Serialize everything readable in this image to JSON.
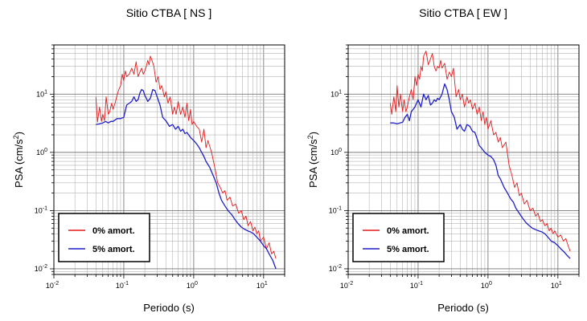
{
  "chart_data": [
    {
      "type": "line",
      "title": "Sitio CTBA [ NS ]",
      "xlabel": "Periodo (s)",
      "ylabel": "PSA (cm/s²)",
      "ylabel_base": "PSA (cm/s",
      "ylabel_sup": "2",
      "ylabel_close": ")",
      "xscale": "log",
      "yscale": "log",
      "xlim": [
        0.01,
        20
      ],
      "ylim": [
        0.008,
        70
      ],
      "grid": true,
      "legend_position": "bottom-left",
      "x_ticks": [
        {
          "base": "10",
          "exp": "-2"
        },
        {
          "base": "10",
          "exp": "-1"
        },
        {
          "base": "10",
          "exp": "0"
        },
        {
          "base": "10",
          "exp": "1"
        }
      ],
      "y_ticks": [
        {
          "base": "10",
          "exp": "-2"
        },
        {
          "base": "10",
          "exp": "-1"
        },
        {
          "base": "10",
          "exp": "0"
        },
        {
          "base": "10",
          "exp": "1"
        }
      ],
      "series": [
        {
          "name": "0% amort.",
          "color": "#e41a1c",
          "x": [
            0.04,
            0.042,
            0.045,
            0.048,
            0.05,
            0.053,
            0.056,
            0.06,
            0.063,
            0.067,
            0.07,
            0.075,
            0.08,
            0.085,
            0.09,
            0.095,
            0.1,
            0.105,
            0.11,
            0.12,
            0.13,
            0.14,
            0.15,
            0.16,
            0.17,
            0.18,
            0.19,
            0.2,
            0.21,
            0.22,
            0.23,
            0.24,
            0.25,
            0.27,
            0.29,
            0.31,
            0.33,
            0.35,
            0.38,
            0.4,
            0.43,
            0.46,
            0.5,
            0.53,
            0.56,
            0.6,
            0.65,
            0.7,
            0.75,
            0.8,
            0.85,
            0.9,
            0.95,
            1.0,
            1.1,
            1.2,
            1.3,
            1.4,
            1.5,
            1.6,
            1.8,
            2.0,
            2.2,
            2.4,
            2.6,
            2.8,
            3.0,
            3.3,
            3.6,
            4.0,
            4.4,
            4.8,
            5.2,
            5.6,
            6.0,
            6.5,
            7.0,
            7.5,
            8.0,
            8.5,
            9.0,
            10.0,
            11.0,
            12.0,
            13.0,
            14.0,
            15.0
          ],
          "y": [
            9,
            3.3,
            6,
            3.4,
            4.5,
            3.5,
            9,
            4.5,
            5,
            7,
            5.5,
            7,
            9.5,
            12,
            14,
            22,
            17,
            25,
            20,
            22,
            28,
            22,
            36,
            20,
            24,
            28,
            22,
            25,
            30,
            38,
            32,
            45,
            40,
            30,
            16,
            20,
            12,
            14,
            9,
            11,
            7,
            9,
            4.5,
            6,
            4.5,
            7.5,
            4.5,
            6,
            4,
            7,
            3.5,
            5.5,
            3,
            3.4,
            2.8,
            2.5,
            1.5,
            2.5,
            1.2,
            1.6,
            1.0,
            0.55,
            0.3,
            0.25,
            0.2,
            0.22,
            0.15,
            0.17,
            0.12,
            0.13,
            0.09,
            0.1,
            0.07,
            0.08,
            0.055,
            0.065,
            0.045,
            0.052,
            0.04,
            0.045,
            0.03,
            0.035,
            0.022,
            0.028,
            0.018,
            0.02,
            0.015
          ]
        },
        {
          "name": "5% amort.",
          "color": "#1f1fcc",
          "x": [
            0.04,
            0.045,
            0.05,
            0.055,
            0.06,
            0.065,
            0.07,
            0.08,
            0.09,
            0.1,
            0.11,
            0.12,
            0.13,
            0.14,
            0.15,
            0.16,
            0.17,
            0.18,
            0.19,
            0.2,
            0.21,
            0.22,
            0.24,
            0.26,
            0.28,
            0.3,
            0.33,
            0.36,
            0.4,
            0.45,
            0.5,
            0.55,
            0.6,
            0.65,
            0.7,
            0.75,
            0.8,
            0.9,
            1.0,
            1.1,
            1.2,
            1.3,
            1.4,
            1.5,
            1.7,
            1.9,
            2.1,
            2.3,
            2.5,
            2.8,
            3.1,
            3.5,
            3.9,
            4.3,
            4.8,
            5.3,
            5.9,
            6.5,
            7.2,
            8.0,
            9.0,
            10.0,
            11.0,
            12.0,
            13.5,
            15.0
          ],
          "y": [
            3,
            3.1,
            3.2,
            3.4,
            3.2,
            3.4,
            3.4,
            3.8,
            3.8,
            4.0,
            6.5,
            7.0,
            7.5,
            9.0,
            7.5,
            8.0,
            10.5,
            12.0,
            11.5,
            9.5,
            8.5,
            7.5,
            8.5,
            12.0,
            11.5,
            9.0,
            6.5,
            4.0,
            3.5,
            2.8,
            3.0,
            2.5,
            2.8,
            2.3,
            2.5,
            2.1,
            2.2,
            1.8,
            1.6,
            1.4,
            1.2,
            1.0,
            0.85,
            0.7,
            0.55,
            0.4,
            0.3,
            0.2,
            0.15,
            0.12,
            0.1,
            0.085,
            0.07,
            0.06,
            0.052,
            0.048,
            0.045,
            0.043,
            0.04,
            0.035,
            0.03,
            0.025,
            0.022,
            0.018,
            0.014,
            0.01
          ]
        }
      ]
    },
    {
      "type": "line",
      "title": "Sitio CTBA [ EW ]",
      "xlabel": "Periodo (s)",
      "ylabel": "PSA (cm/s²)",
      "ylabel_base": "PSA (cm/s",
      "ylabel_sup": "2",
      "ylabel_close": ")",
      "xscale": "log",
      "yscale": "log",
      "xlim": [
        0.01,
        20
      ],
      "ylim": [
        0.008,
        70
      ],
      "grid": true,
      "legend_position": "bottom-left",
      "x_ticks": [
        {
          "base": "10",
          "exp": "-2"
        },
        {
          "base": "10",
          "exp": "-1"
        },
        {
          "base": "10",
          "exp": "0"
        },
        {
          "base": "10",
          "exp": "1"
        }
      ],
      "y_ticks": [
        {
          "base": "10",
          "exp": "-2"
        },
        {
          "base": "10",
          "exp": "-1"
        },
        {
          "base": "10",
          "exp": "0"
        },
        {
          "base": "10",
          "exp": "1"
        }
      ],
      "series": [
        {
          "name": "0% amort.",
          "color": "#e41a1c",
          "x": [
            0.04,
            0.042,
            0.045,
            0.048,
            0.05,
            0.053,
            0.056,
            0.06,
            0.063,
            0.067,
            0.07,
            0.075,
            0.08,
            0.085,
            0.09,
            0.095,
            0.1,
            0.105,
            0.11,
            0.115,
            0.12,
            0.13,
            0.14,
            0.15,
            0.16,
            0.17,
            0.18,
            0.19,
            0.2,
            0.21,
            0.22,
            0.24,
            0.26,
            0.28,
            0.3,
            0.32,
            0.35,
            0.38,
            0.4,
            0.43,
            0.46,
            0.5,
            0.53,
            0.56,
            0.6,
            0.65,
            0.7,
            0.75,
            0.8,
            0.85,
            0.9,
            0.95,
            1.0,
            1.1,
            1.2,
            1.3,
            1.4,
            1.5,
            1.6,
            1.8,
            2.0,
            2.2,
            2.4,
            2.6,
            2.8,
            3.0,
            3.3,
            3.6,
            4.0,
            4.4,
            4.8,
            5.2,
            5.6,
            6.0,
            6.5,
            7.0,
            7.5,
            8.0,
            8.5,
            9.0,
            10.0,
            11.0,
            12.0,
            13.0,
            14.0,
            15.0
          ],
          "y": [
            7,
            4.5,
            9,
            5,
            14,
            6,
            10,
            5,
            8,
            5,
            6,
            9,
            12,
            8,
            20,
            14,
            22,
            18,
            30,
            25,
            45,
            55,
            32,
            40,
            50,
            30,
            25,
            30,
            28,
            38,
            28,
            34,
            18,
            24,
            20,
            28,
            9,
            12,
            8,
            10,
            6,
            9,
            7,
            8,
            5.5,
            7,
            4.5,
            6,
            3.5,
            5,
            3,
            4,
            2.5,
            3.5,
            2.0,
            2.2,
            1.5,
            1.8,
            1.2,
            1.5,
            0.6,
            0.4,
            0.25,
            0.3,
            0.18,
            0.2,
            0.13,
            0.15,
            0.1,
            0.11,
            0.08,
            0.09,
            0.065,
            0.07,
            0.055,
            0.06,
            0.045,
            0.05,
            0.04,
            0.045,
            0.035,
            0.038,
            0.03,
            0.033,
            0.025,
            0.02
          ]
        },
        {
          "name": "5% amort.",
          "color": "#1f1fcc",
          "x": [
            0.04,
            0.045,
            0.05,
            0.055,
            0.06,
            0.065,
            0.07,
            0.075,
            0.08,
            0.09,
            0.1,
            0.11,
            0.12,
            0.13,
            0.14,
            0.15,
            0.16,
            0.17,
            0.18,
            0.19,
            0.2,
            0.22,
            0.24,
            0.26,
            0.28,
            0.3,
            0.33,
            0.36,
            0.4,
            0.43,
            0.46,
            0.5,
            0.55,
            0.6,
            0.65,
            0.7,
            0.75,
            0.8,
            0.9,
            1.0,
            1.1,
            1.2,
            1.3,
            1.4,
            1.5,
            1.7,
            1.9,
            2.1,
            2.3,
            2.5,
            2.8,
            3.1,
            3.5,
            3.9,
            4.3,
            4.8,
            5.3,
            5.9,
            6.5,
            7.2,
            8.0,
            9.0,
            10.0,
            11.0,
            12.0,
            13.5,
            15.0
          ],
          "y": [
            3.2,
            3.2,
            3.1,
            3.2,
            3.3,
            4.0,
            4.5,
            3.5,
            5.0,
            6.0,
            8.0,
            6.0,
            10.0,
            8.0,
            9.5,
            6.5,
            7.0,
            8.0,
            7.5,
            8.5,
            8.0,
            10.0,
            15.0,
            12.0,
            8.0,
            5.0,
            4.0,
            2.5,
            3.0,
            2.5,
            2.3,
            3.0,
            2.8,
            2.3,
            2.2,
            1.7,
            1.3,
            1.2,
            1.0,
            0.9,
            0.85,
            0.75,
            0.6,
            0.4,
            0.35,
            0.25,
            0.2,
            0.16,
            0.14,
            0.11,
            0.09,
            0.075,
            0.062,
            0.055,
            0.05,
            0.047,
            0.045,
            0.043,
            0.04,
            0.035,
            0.03,
            0.028,
            0.025,
            0.022,
            0.02,
            0.017,
            0.015
          ]
        }
      ]
    }
  ]
}
